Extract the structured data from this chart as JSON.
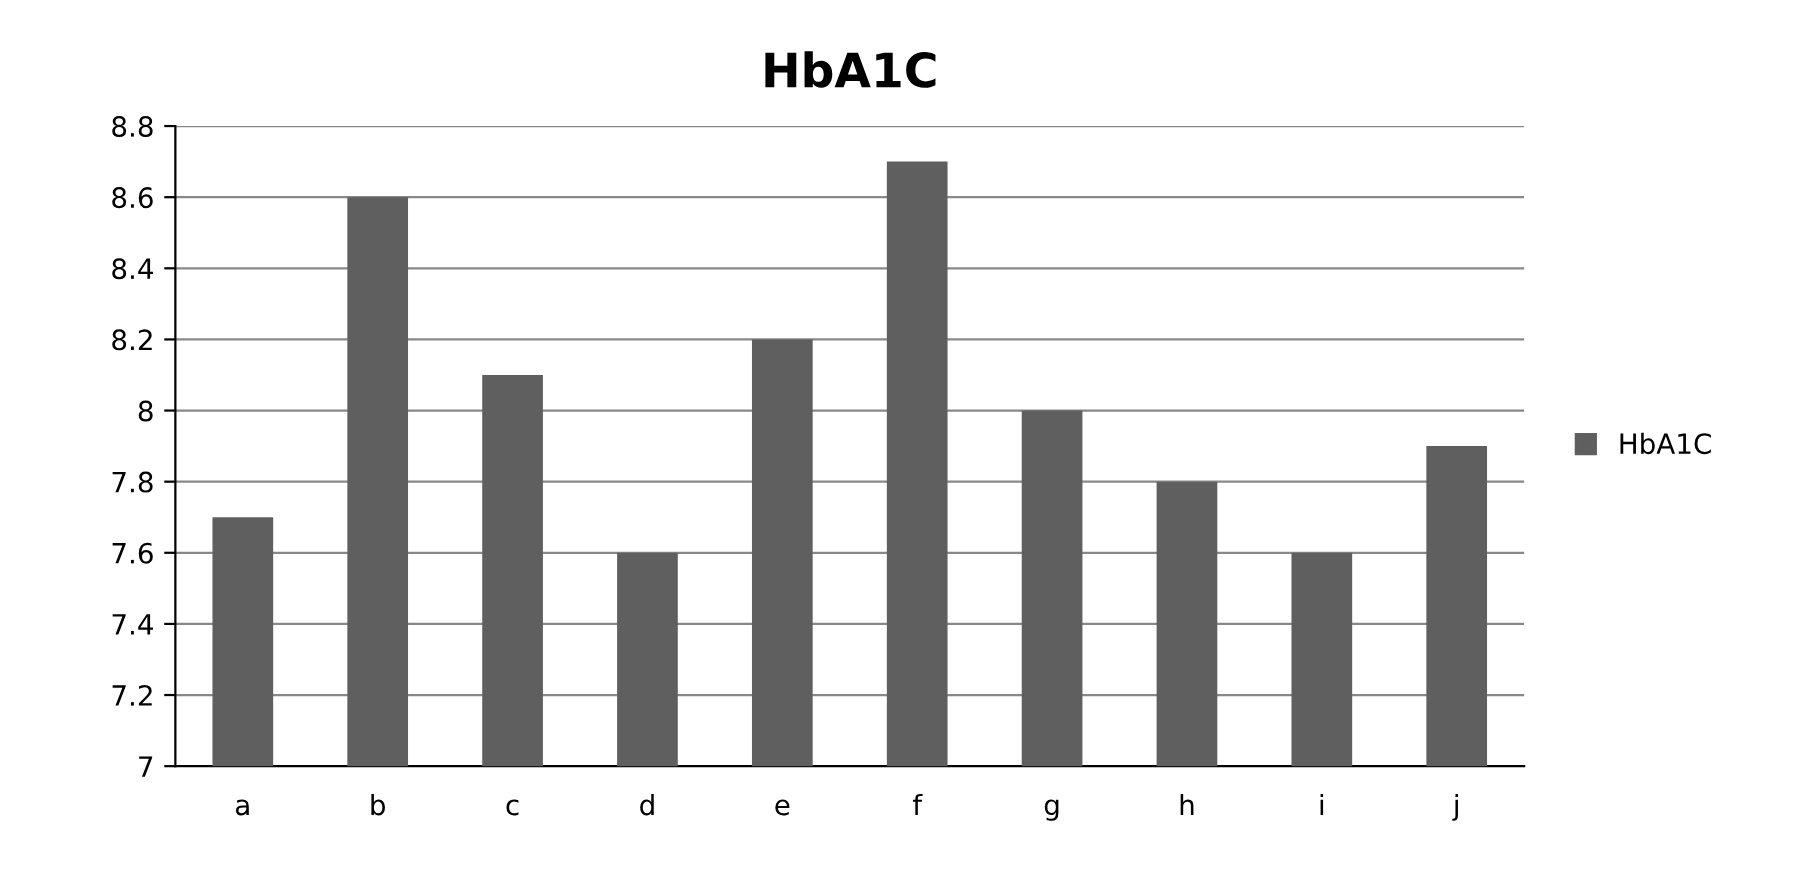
{
  "chart_data": {
    "type": "bar",
    "title": "HbA1C",
    "categories": [
      "a",
      "b",
      "c",
      "d",
      "e",
      "f",
      "g",
      "h",
      "i",
      "j"
    ],
    "series": [
      {
        "name": "HbA1C",
        "color": "#5f5f5f",
        "values": [
          7.7,
          8.6,
          8.1,
          7.6,
          8.2,
          8.7,
          8.0,
          7.8,
          7.6,
          7.9
        ]
      }
    ],
    "ylim": [
      7,
      8.8
    ],
    "yticks": [
      7,
      7.2,
      7.4,
      7.6,
      7.8,
      8,
      8.2,
      8.4,
      8.6,
      8.8
    ],
    "grid": "y",
    "legend": "right"
  }
}
